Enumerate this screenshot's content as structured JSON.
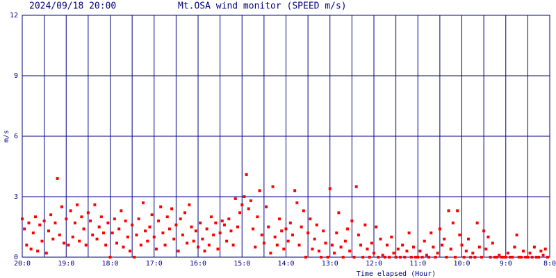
{
  "chart_data": {
    "type": "scatter",
    "title": "Mt.OSA wind monitor (SPEED m/s)",
    "timestamp": "2024/09/18 20:00",
    "ylabel": "m/s",
    "xlabel": "Time elapsed (Hour)",
    "color": "#ff0000",
    "grid": true,
    "xlim": [
      0,
      12
    ],
    "ylim": [
      0,
      12
    ],
    "yticks": [
      0,
      3,
      6,
      9,
      12
    ],
    "xticks": [
      {
        "value": 0,
        "label": "20:0"
      },
      {
        "value": 1,
        "label": "19:0"
      },
      {
        "value": 2,
        "label": "18:0"
      },
      {
        "value": 3,
        "label": "17:0"
      },
      {
        "value": 4,
        "label": "16:0"
      },
      {
        "value": 5,
        "label": "15:0"
      },
      {
        "value": 6,
        "label": "14:0"
      },
      {
        "value": 7,
        "label": "13:0"
      },
      {
        "value": 8,
        "label": "12:0"
      },
      {
        "value": 9,
        "label": "11:0"
      },
      {
        "value": 10,
        "label": "10:0"
      },
      {
        "value": 11,
        "label": "9:0"
      },
      {
        "value": 12,
        "label": "8:0"
      }
    ],
    "xminor": [
      0.5,
      1.5,
      2.5,
      3.5,
      4.5,
      5.5,
      6.5,
      7.5,
      8.5,
      9.5,
      10.5,
      11.5
    ],
    "x": [
      0,
      0.05,
      0.1,
      0.15,
      0.2,
      0.25,
      0.3,
      0.35,
      0.4,
      0.45,
      0.5,
      0.55,
      0.6,
      0.65,
      0.7,
      0.75,
      0.8,
      0.85,
      0.9,
      0.95,
      1,
      1.05,
      1.1,
      1.15,
      1.2,
      1.25,
      1.3,
      1.35,
      1.4,
      1.45,
      1.5,
      1.55,
      1.6,
      1.65,
      1.7,
      1.75,
      1.8,
      1.85,
      1.9,
      1.95,
      2,
      2.05,
      2.1,
      2.15,
      2.2,
      2.25,
      2.3,
      2.35,
      2.4,
      2.45,
      2.5,
      2.55,
      2.6,
      2.65,
      2.7,
      2.75,
      2.8,
      2.85,
      2.9,
      2.95,
      3,
      3.05,
      3.1,
      3.15,
      3.2,
      3.25,
      3.3,
      3.35,
      3.4,
      3.45,
      3.5,
      3.55,
      3.6,
      3.65,
      3.7,
      3.75,
      3.8,
      3.85,
      3.9,
      3.95,
      4,
      4.05,
      4.1,
      4.15,
      4.2,
      4.25,
      4.3,
      4.35,
      4.4,
      4.45,
      4.5,
      4.55,
      4.6,
      4.65,
      4.7,
      4.75,
      4.8,
      4.85,
      4.9,
      4.95,
      5,
      5.05,
      5.1,
      5.15,
      5.2,
      5.25,
      5.3,
      5.35,
      5.4,
      5.45,
      5.5,
      5.55,
      5.6,
      5.65,
      5.7,
      5.75,
      5.8,
      5.85,
      5.9,
      5.95,
      6,
      6.05,
      6.1,
      6.15,
      6.2,
      6.25,
      6.3,
      6.35,
      6.4,
      6.45,
      6.5,
      6.55,
      6.6,
      6.65,
      6.7,
      6.75,
      6.8,
      6.85,
      6.9,
      6.95,
      7,
      7.05,
      7.1,
      7.15,
      7.2,
      7.25,
      7.3,
      7.35,
      7.4,
      7.45,
      7.5,
      7.55,
      7.6,
      7.65,
      7.7,
      7.75,
      7.8,
      7.85,
      7.9,
      7.95,
      8,
      8.05,
      8.1,
      8.15,
      8.2,
      8.25,
      8.3,
      8.35,
      8.4,
      8.45,
      8.5,
      8.55,
      8.6,
      8.65,
      8.7,
      8.75,
      8.8,
      8.85,
      8.9,
      8.95,
      9,
      9.05,
      9.1,
      9.15,
      9.2,
      9.25,
      9.3,
      9.35,
      9.4,
      9.45,
      9.5,
      9.55,
      9.6,
      9.65,
      9.7,
      9.75,
      9.8,
      9.85,
      9.9,
      9.95,
      10,
      10.05,
      10.1,
      10.15,
      10.2,
      10.25,
      10.3,
      10.35,
      10.4,
      10.45,
      10.5,
      10.55,
      10.6,
      10.65,
      10.7,
      10.75,
      10.8,
      10.85,
      10.9,
      10.95,
      11,
      11.05,
      11.1,
      11.15,
      11.2,
      11.25,
      11.3,
      11.35,
      11.4,
      11.45,
      11.5,
      11.55,
      11.6,
      11.65,
      11.7,
      11.75,
      11.8,
      11.85,
      11.9,
      11.95
    ],
    "values": [
      1.9,
      1.4,
      0.6,
      1.7,
      0.4,
      1.2,
      2.0,
      0.3,
      1.6,
      0.8,
      1.8,
      0.2,
      1.3,
      2.1,
      0.9,
      1.7,
      3.9,
      1.1,
      2.5,
      0.7,
      1.9,
      0.6,
      2.3,
      1.0,
      1.7,
      2.6,
      0.8,
      2.0,
      1.4,
      0.6,
      2.2,
      1.8,
      1.1,
      2.6,
      0.9,
      1.5,
      2.0,
      1.2,
      0.6,
      1.7,
      0.0,
      1.2,
      1.9,
      0.7,
      1.4,
      2.3,
      0.5,
      1.8,
      1.0,
      0.3,
      1.6,
      0.0,
      1.1,
      1.9,
      0.6,
      2.7,
      1.3,
      0.8,
      1.5,
      2.1,
      1.0,
      0.4,
      1.8,
      2.5,
      1.2,
      0.6,
      2.0,
      1.4,
      2.4,
      0.9,
      1.6,
      0.3,
      1.9,
      1.1,
      2.2,
      0.7,
      2.6,
      1.5,
      0.8,
      1.3,
      0.5,
      1.7,
      0.9,
      0.3,
      1.4,
      0.6,
      2.0,
      1.1,
      1.7,
      0.4,
      1.2,
      1.8,
      1.6,
      0.8,
      1.9,
      1.3,
      0.6,
      2.9,
      1.5,
      2.2,
      2.6,
      3.0,
      4.1,
      2.4,
      2.8,
      1.4,
      0.5,
      2.0,
      3.3,
      1.1,
      0.7,
      2.5,
      1.5,
      0.2,
      3.5,
      1.0,
      0.6,
      1.9,
      1.3,
      0.4,
      1.4,
      0.8,
      1.7,
      1.1,
      3.3,
      2.7,
      0.6,
      1.5,
      2.3,
      0.0,
      1.2,
      1.9,
      0.4,
      0.9,
      1.6,
      0.3,
      0.0,
      1.3,
      0.7,
      0.0,
      3.4,
      0.6,
      0.2,
      1.2,
      2.2,
      0.5,
      0.0,
      0.8,
      1.4,
      0.3,
      1.8,
      0.0,
      3.5,
      1.1,
      0.6,
      0.0,
      1.6,
      0.4,
      0.0,
      0.7,
      0.2,
      1.5,
      0.0,
      0.9,
      0.1,
      0.0,
      0.6,
      0.0,
      1.0,
      0.2,
      0.0,
      0.4,
      0.0,
      0.6,
      0.0,
      0.3,
      1.2,
      0.0,
      0.5,
      0.0,
      0.0,
      0.3,
      0.0,
      0.8,
      0.1,
      0.0,
      1.2,
      0.5,
      0.0,
      0.2,
      1.4,
      0.6,
      0.9,
      0.0,
      2.3,
      0.4,
      1.7,
      0.0,
      2.3,
      1.1,
      0.6,
      0.0,
      0.3,
      0.9,
      0.0,
      0.2,
      0.0,
      1.7,
      0.5,
      0.0,
      1.3,
      0.4,
      1.0,
      0.0,
      0.7,
      0.0,
      0.0,
      0.1,
      0.0,
      0.0,
      0.0,
      0.2,
      0.0,
      0.0,
      0.5,
      1.1,
      0.0,
      0.0,
      0.3,
      0.0,
      0.0,
      0.2,
      0.0,
      0.5,
      0.0,
      0.0,
      0.3,
      0.1,
      0.4,
      0.0
    ]
  }
}
